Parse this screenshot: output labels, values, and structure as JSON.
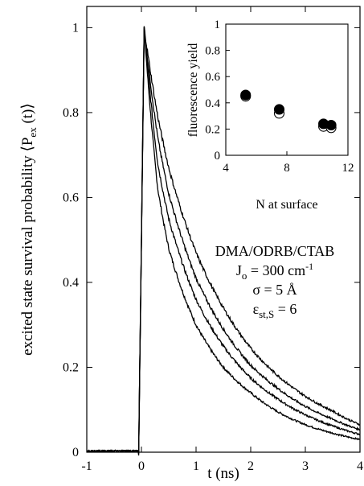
{
  "chart_data": [
    {
      "type": "line",
      "role": "main",
      "xlabel": "t (ns)",
      "ylabel": "excited state survival probability ⟨P",
      "ylabel_sub": "ex",
      "ylabel_tail": " (t)⟩",
      "xlim": [
        -1,
        4
      ],
      "ylim": [
        0,
        1.05
      ],
      "x_ticks": [
        -1,
        0,
        1,
        2,
        3,
        4
      ],
      "y_ticks": [
        0,
        0.2,
        0.4,
        0.6,
        0.8,
        1
      ],
      "x_tick_labels": [
        "-1",
        "0",
        "1",
        "2",
        "3",
        "4"
      ],
      "y_tick_labels": [
        "0",
        "0.2",
        "0.4",
        "0.6",
        "0.8",
        "1"
      ],
      "grid": false,
      "line_color": "#000000",
      "rise": {
        "t0": -0.05,
        "t_peak": 0.05,
        "peak": 1.0
      },
      "curves": [
        {
          "points": [
            [
              0.05,
              1.0
            ],
            [
              0.3,
              0.62
            ],
            [
              0.5,
              0.48
            ],
            [
              1.0,
              0.3
            ],
            [
              1.5,
              0.2
            ],
            [
              2.0,
              0.14
            ],
            [
              2.5,
              0.095
            ],
            [
              3.0,
              0.065
            ],
            [
              3.5,
              0.045
            ],
            [
              4.0,
              0.03
            ]
          ]
        },
        {
          "points": [
            [
              0.05,
              1.0
            ],
            [
              0.3,
              0.68
            ],
            [
              0.5,
              0.55
            ],
            [
              1.0,
              0.36
            ],
            [
              1.5,
              0.25
            ],
            [
              2.0,
              0.175
            ],
            [
              2.5,
              0.125
            ],
            [
              3.0,
              0.088
            ],
            [
              3.5,
              0.062
            ],
            [
              4.0,
              0.042
            ]
          ]
        },
        {
          "points": [
            [
              0.05,
              1.0
            ],
            [
              0.3,
              0.74
            ],
            [
              0.5,
              0.61
            ],
            [
              1.0,
              0.41
            ],
            [
              1.5,
              0.29
            ],
            [
              2.0,
              0.205
            ],
            [
              2.5,
              0.15
            ],
            [
              3.0,
              0.108
            ],
            [
              3.5,
              0.078
            ],
            [
              4.0,
              0.053
            ]
          ]
        },
        {
          "points": [
            [
              0.05,
              1.0
            ],
            [
              0.3,
              0.79
            ],
            [
              0.5,
              0.67
            ],
            [
              1.0,
              0.47
            ],
            [
              1.5,
              0.34
            ],
            [
              2.0,
              0.245
            ],
            [
              2.5,
              0.18
            ],
            [
              3.0,
              0.132
            ],
            [
              3.5,
              0.097
            ],
            [
              4.0,
              0.065
            ]
          ]
        }
      ],
      "annotations": {
        "system": "DMA/ODRB/CTAB",
        "j_label": "J",
        "j_sub": "o",
        "j_value": " = 300 cm",
        "j_sup": "-1",
        "sigma_text": "σ = 5 Å",
        "eps_symbol": "ε",
        "eps_sub": "st,S",
        "eps_value": " = 6"
      }
    },
    {
      "type": "scatter",
      "role": "inset",
      "xlabel": "N at surface",
      "ylabel": "fluorescence yield",
      "xlim": [
        4,
        12
      ],
      "ylim": [
        0,
        1
      ],
      "x_ticks": [
        4,
        8,
        12
      ],
      "y_ticks": [
        0,
        0.2,
        0.4,
        0.6,
        0.8,
        1
      ],
      "x_tick_labels": [
        "4",
        "8",
        "12"
      ],
      "y_tick_labels": [
        "0",
        "0.2",
        "0.4",
        "0.6",
        "0.8",
        "1"
      ],
      "grid": false,
      "series": [
        {
          "marker": "open-circle",
          "x": [
            5.3,
            7.5,
            10.4,
            10.9
          ],
          "y": [
            0.45,
            0.32,
            0.22,
            0.21
          ]
        },
        {
          "marker": "filled-circle",
          "x": [
            5.3,
            7.5,
            10.4,
            10.9
          ],
          "y": [
            0.46,
            0.35,
            0.24,
            0.23
          ]
        }
      ]
    }
  ]
}
